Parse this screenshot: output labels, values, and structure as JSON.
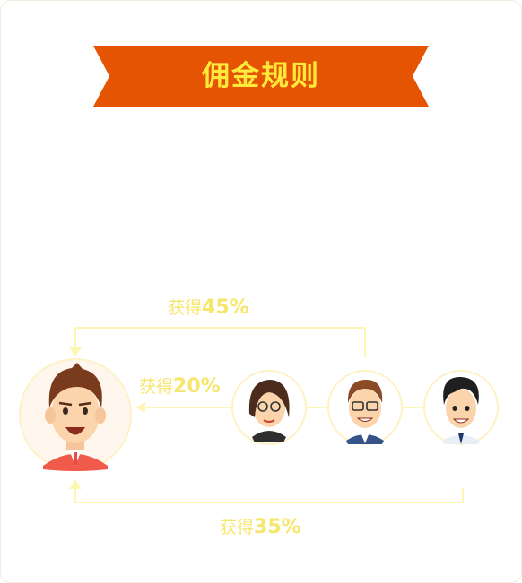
{
  "header": {
    "title": "佣金规则"
  },
  "rules": [
    {
      "prefix": "获得",
      "percent": "45%"
    },
    {
      "prefix": "获得",
      "percent": "20%"
    },
    {
      "prefix": "获得",
      "percent": "35%"
    }
  ],
  "colors": {
    "banner": "#e45403",
    "banner_text": "#ffe93a",
    "label": "#f6e66b",
    "line": "#fdf7b4"
  },
  "avatars": [
    "main-user-avatar",
    "woman-glasses-avatar",
    "man-glasses-avatar",
    "young-man-avatar"
  ]
}
